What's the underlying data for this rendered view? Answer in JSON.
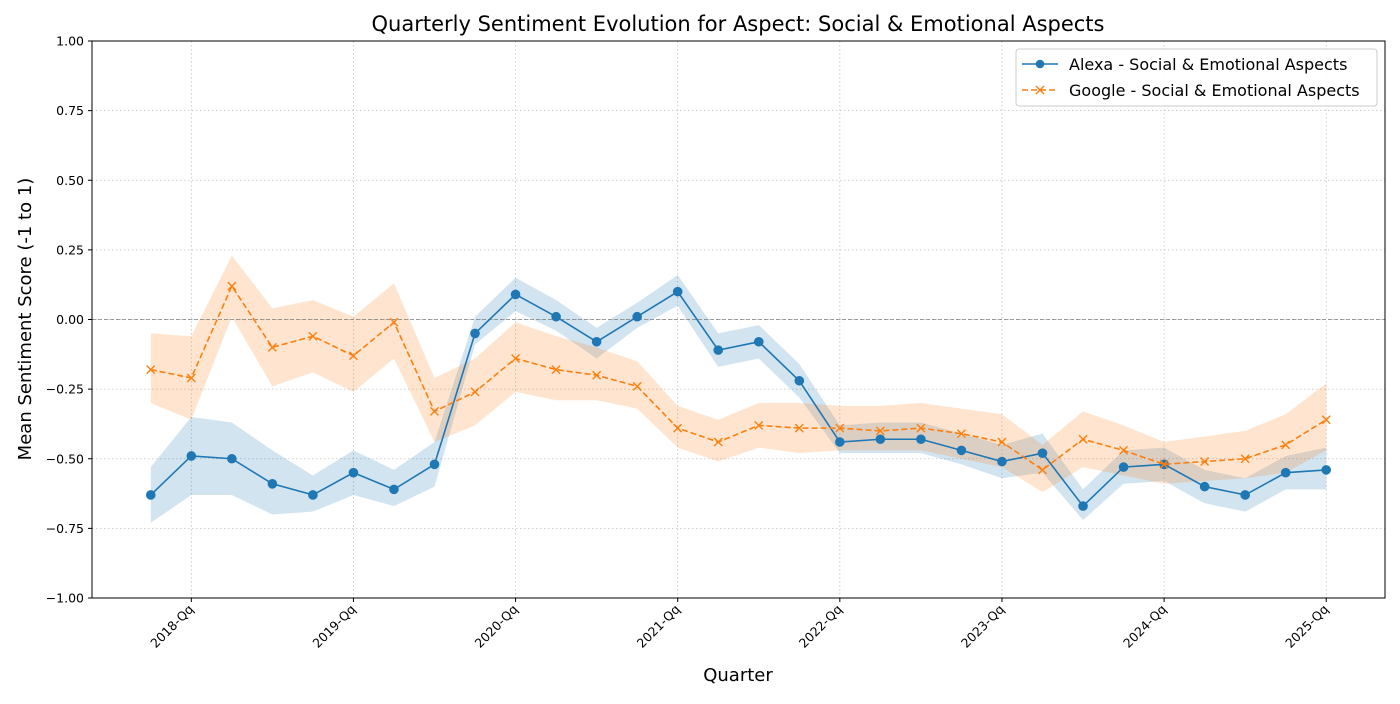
{
  "chart_data": {
    "type": "line",
    "title": "Quarterly Sentiment Evolution for Aspect: Social & Emotional Aspects",
    "xlabel": "Quarter",
    "ylabel": "Mean Sentiment Score (-1 to 1)",
    "ylim": [
      -1.0,
      1.0
    ],
    "xlim": [
      -1.45,
      30.45
    ],
    "grid": true,
    "legend_position": "top-right",
    "reference_line": 0.0,
    "y_ticks": [
      -1.0,
      -0.75,
      -0.5,
      -0.25,
      0.0,
      0.25,
      0.5,
      0.75,
      1.0
    ],
    "y_tick_labels": [
      "−1.00",
      "−0.75",
      "−0.50",
      "−0.25",
      "0.00",
      "0.25",
      "0.50",
      "0.75",
      "1.00"
    ],
    "x_ticks": [
      1,
      5,
      9,
      13,
      17,
      21,
      25,
      29
    ],
    "x_tick_labels": [
      "2018-Qq",
      "2019-Qq",
      "2020-Qq",
      "2021-Qq",
      "2022-Qq",
      "2023-Qq",
      "2024-Qq",
      "2025-Qq"
    ],
    "x": [
      0,
      1,
      2,
      3,
      4,
      5,
      6,
      7,
      8,
      9,
      10,
      11,
      12,
      13,
      14,
      15,
      16,
      17,
      18,
      19,
      20,
      21,
      22,
      23,
      24,
      25,
      26,
      27,
      28,
      29
    ],
    "series": [
      {
        "name": "Alexa - Social & Emotional Aspects",
        "color": "#1f77b4",
        "marker": "circle",
        "linestyle": "solid",
        "values": [
          -0.63,
          -0.49,
          -0.5,
          -0.59,
          -0.63,
          -0.55,
          -0.61,
          -0.52,
          -0.05,
          0.09,
          0.01,
          -0.08,
          0.01,
          0.1,
          -0.11,
          -0.08,
          -0.22,
          -0.44,
          -0.43,
          -0.43,
          -0.47,
          -0.51,
          -0.48,
          -0.67,
          -0.53,
          -0.52,
          -0.6,
          -0.63,
          -0.55,
          -0.54
        ],
        "lower": [
          -0.73,
          -0.63,
          -0.63,
          -0.7,
          -0.69,
          -0.63,
          -0.67,
          -0.6,
          -0.09,
          0.03,
          -0.04,
          -0.14,
          -0.03,
          0.05,
          -0.17,
          -0.14,
          -0.28,
          -0.48,
          -0.48,
          -0.48,
          -0.52,
          -0.57,
          -0.55,
          -0.72,
          -0.59,
          -0.58,
          -0.66,
          -0.69,
          -0.61,
          -0.61
        ],
        "upper": [
          -0.53,
          -0.35,
          -0.37,
          -0.47,
          -0.56,
          -0.47,
          -0.54,
          -0.44,
          0.01,
          0.15,
          0.07,
          -0.03,
          0.06,
          0.16,
          -0.05,
          -0.02,
          -0.16,
          -0.38,
          -0.37,
          -0.37,
          -0.41,
          -0.45,
          -0.41,
          -0.61,
          -0.47,
          -0.46,
          -0.54,
          -0.57,
          -0.49,
          -0.46
        ]
      },
      {
        "name": "Google - Social & Emotional Aspects",
        "color": "#ff7f0e",
        "marker": "x",
        "linestyle": "dashed",
        "values": [
          -0.18,
          -0.21,
          0.12,
          -0.1,
          -0.06,
          -0.13,
          -0.01,
          -0.33,
          -0.26,
          -0.14,
          -0.18,
          -0.2,
          -0.24,
          -0.39,
          -0.44,
          -0.38,
          -0.39,
          -0.39,
          -0.4,
          -0.39,
          -0.41,
          -0.44,
          -0.54,
          -0.43,
          -0.47,
          -0.52,
          -0.51,
          -0.5,
          -0.45,
          -0.36
        ],
        "lower": [
          -0.3,
          -0.36,
          0.01,
          -0.24,
          -0.19,
          -0.26,
          -0.14,
          -0.44,
          -0.38,
          -0.26,
          -0.29,
          -0.29,
          -0.32,
          -0.46,
          -0.51,
          -0.46,
          -0.48,
          -0.47,
          -0.47,
          -0.47,
          -0.5,
          -0.53,
          -0.62,
          -0.53,
          -0.56,
          -0.59,
          -0.58,
          -0.57,
          -0.55,
          -0.47
        ],
        "upper": [
          -0.05,
          -0.06,
          0.23,
          0.04,
          0.07,
          0.01,
          0.13,
          -0.21,
          -0.14,
          -0.01,
          -0.06,
          -0.1,
          -0.15,
          -0.31,
          -0.36,
          -0.3,
          -0.3,
          -0.31,
          -0.31,
          -0.3,
          -0.32,
          -0.34,
          -0.45,
          -0.33,
          -0.38,
          -0.44,
          -0.42,
          -0.4,
          -0.34,
          -0.23
        ]
      }
    ]
  }
}
